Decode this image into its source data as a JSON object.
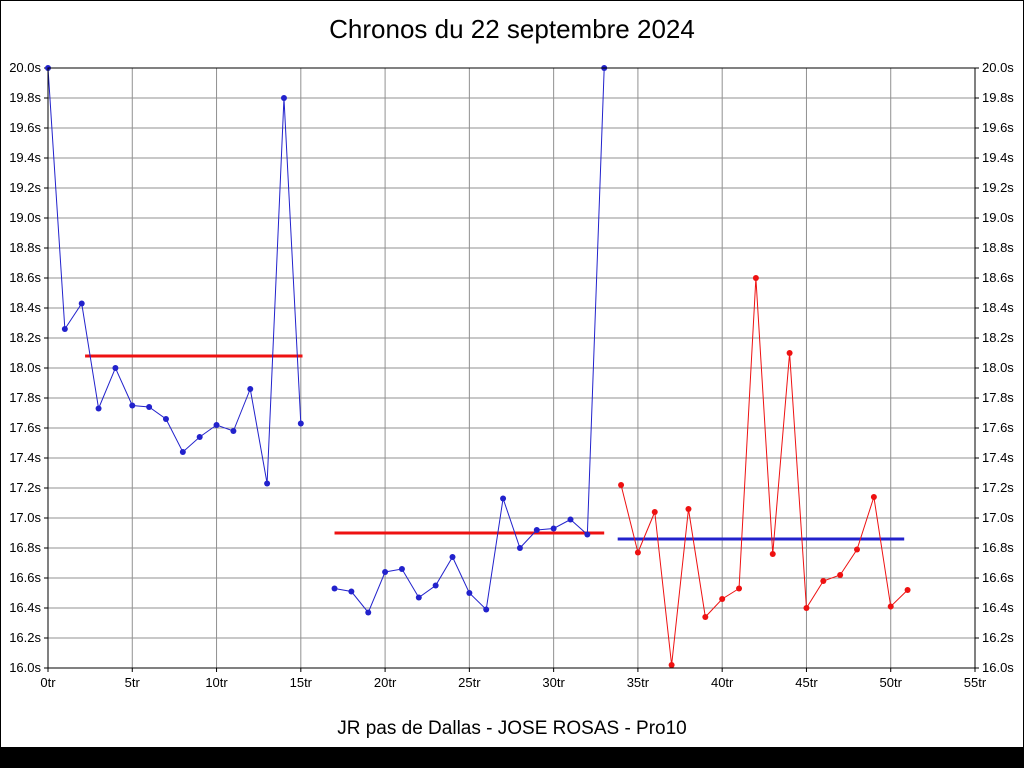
{
  "chart_data": {
    "type": "line",
    "title": "Chronos du 22 septembre 2024",
    "footer": "JR pas de Dallas - JOSE ROSAS - Pro10",
    "x_unit": "tr",
    "y_unit": "s",
    "xlim": [
      0,
      55
    ],
    "ylim": [
      16.0,
      20.0
    ],
    "x_tick_step": 5,
    "y_tick_step": 0.2,
    "grid": true,
    "y_axis_labels": "both-sides",
    "legend": "none",
    "colors": {
      "blue": "#2222cc",
      "red": "#ee1111",
      "grid": "#909090",
      "frame": "#000000",
      "text": "#000000"
    },
    "series": [
      {
        "name": "laps-segment-1-blue",
        "color_key": "blue",
        "x_start": 0,
        "x_step": 1,
        "values": [
          20.0,
          18.26,
          18.43,
          17.73,
          18.0,
          17.75,
          17.74,
          17.66,
          17.44,
          17.54,
          17.62,
          17.58,
          17.86,
          17.23,
          19.8,
          17.63
        ]
      },
      {
        "name": "laps-segment-2-blue",
        "color_key": "blue",
        "x_start": 17,
        "x_step": 1,
        "values": [
          16.53,
          16.51,
          16.37,
          16.64,
          16.66,
          16.47,
          16.55,
          16.74,
          16.5,
          16.39,
          17.13,
          16.8,
          16.92,
          16.93,
          16.99,
          16.89,
          20.0
        ]
      },
      {
        "name": "laps-segment-3-red",
        "color_key": "red",
        "x_start": 34,
        "x_step": 1,
        "values": [
          17.22,
          16.77,
          17.04,
          16.02,
          17.06,
          16.34,
          16.46,
          16.53,
          18.6,
          16.76,
          18.1,
          16.4,
          16.58,
          16.62,
          16.79,
          17.14,
          16.41,
          16.52
        ]
      }
    ],
    "reference_lines": [
      {
        "name": "average-line-segment-1",
        "color_key": "red",
        "x1": 2.2,
        "x2": 15.1,
        "y": 18.08
      },
      {
        "name": "average-line-segment-2",
        "color_key": "red",
        "x1": 17.0,
        "x2": 33.0,
        "y": 16.9
      },
      {
        "name": "average-line-segment-3",
        "color_key": "blue",
        "x1": 33.8,
        "x2": 50.8,
        "y": 16.86
      }
    ]
  }
}
